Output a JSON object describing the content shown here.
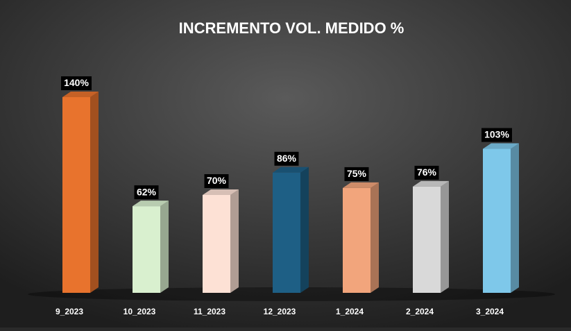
{
  "chart_data": {
    "type": "bar",
    "title": "INCREMENTO VOL. MEDIDO %",
    "categories": [
      "9_2023",
      "10_2023",
      "11_2023",
      "12_2023",
      "1_2024",
      "2_2024",
      "3_2024"
    ],
    "values": [
      140,
      62,
      70,
      86,
      75,
      76,
      103
    ],
    "value_labels": [
      "140%",
      "62%",
      "70%",
      "86%",
      "75%",
      "76%",
      "103%"
    ],
    "colors": [
      "#e8732d",
      "#d9f0cf",
      "#fde1d5",
      "#1e5f85",
      "#f2a57c",
      "#d9d9d9",
      "#7ec8ea"
    ]
  }
}
